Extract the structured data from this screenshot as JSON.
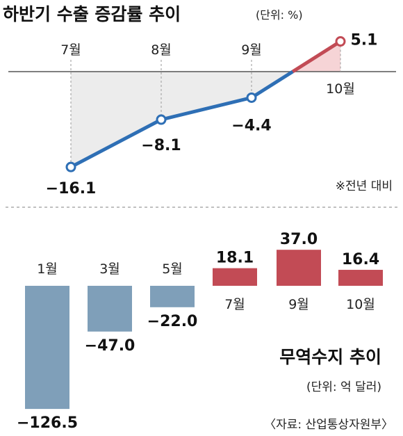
{
  "chart_data": [
    {
      "type": "line",
      "title": "하반기 수출 증감률 추이",
      "unit_label": "(단위: %)",
      "note": "※전년 대비",
      "categories": [
        "7월",
        "8월",
        "9월",
        "10월"
      ],
      "values": [
        -16.1,
        -8.1,
        -4.4,
        5.1
      ],
      "value_labels": [
        "−16.1",
        "−8.1",
        "−4.4",
        "5.1"
      ],
      "ylim": [
        -20,
        8
      ],
      "grid": false,
      "colors": {
        "line": "#2e6fb5",
        "line_positive": "#c24b55",
        "fill": "#ececec",
        "fill_positive": "#f6d4d6"
      }
    },
    {
      "type": "bar",
      "title": "무역수지 추이",
      "unit_label": "(단위: 억 달러)",
      "source": "〈자료: 산업통상자원부〉",
      "categories": [
        "1월",
        "3월",
        "5월",
        "7월",
        "9월",
        "10월"
      ],
      "values": [
        -126.5,
        -47.0,
        -22.0,
        18.1,
        37.0,
        16.4
      ],
      "value_labels": [
        "−126.5",
        "−47.0",
        "−22.0",
        "18.1",
        "37.0",
        "16.4"
      ],
      "colors": {
        "negative": "#7f9fb9",
        "positive": "#c24b55"
      }
    }
  ]
}
